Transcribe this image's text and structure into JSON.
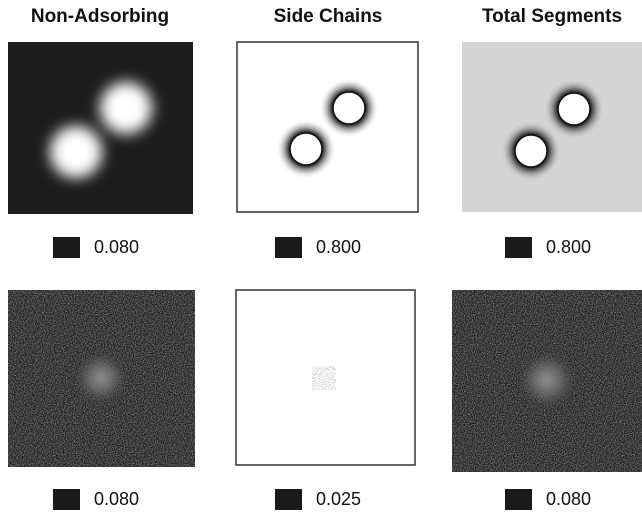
{
  "columns": [
    {
      "title": "Non-Adsorbing",
      "scales": [
        "0.080",
        "0.080"
      ]
    },
    {
      "title": "Side Chains",
      "scales": [
        "0.800",
        "0.025"
      ]
    },
    {
      "title": "Total Segments",
      "scales": [
        "0.800",
        "0.080"
      ]
    }
  ]
}
